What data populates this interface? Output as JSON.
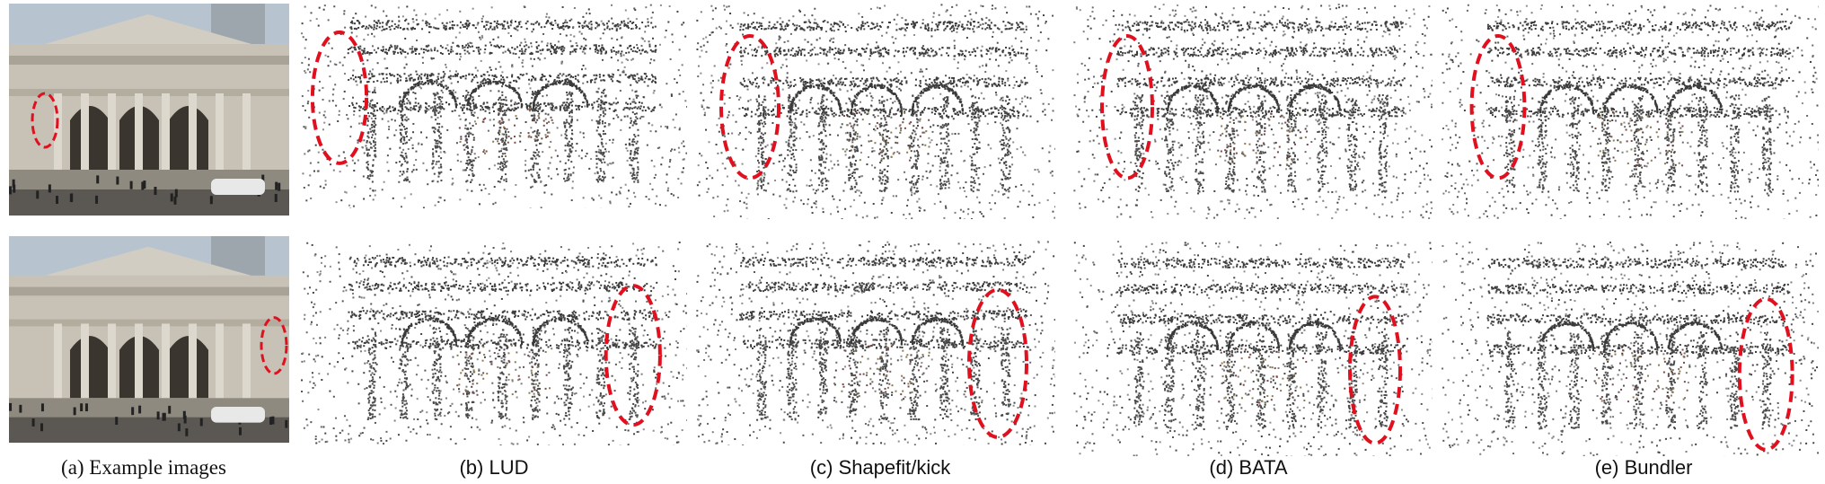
{
  "figure": {
    "captions": [
      {
        "id": "a",
        "label": "(a) Example images"
      },
      {
        "id": "b",
        "label": "(b) LUD"
      },
      {
        "id": "c",
        "label": "(c) Shapefit/kick"
      },
      {
        "id": "d",
        "label": "(d) BATA"
      },
      {
        "id": "e",
        "label": "(e) Bundler"
      }
    ],
    "highlight_color": "#e0101e"
  }
}
